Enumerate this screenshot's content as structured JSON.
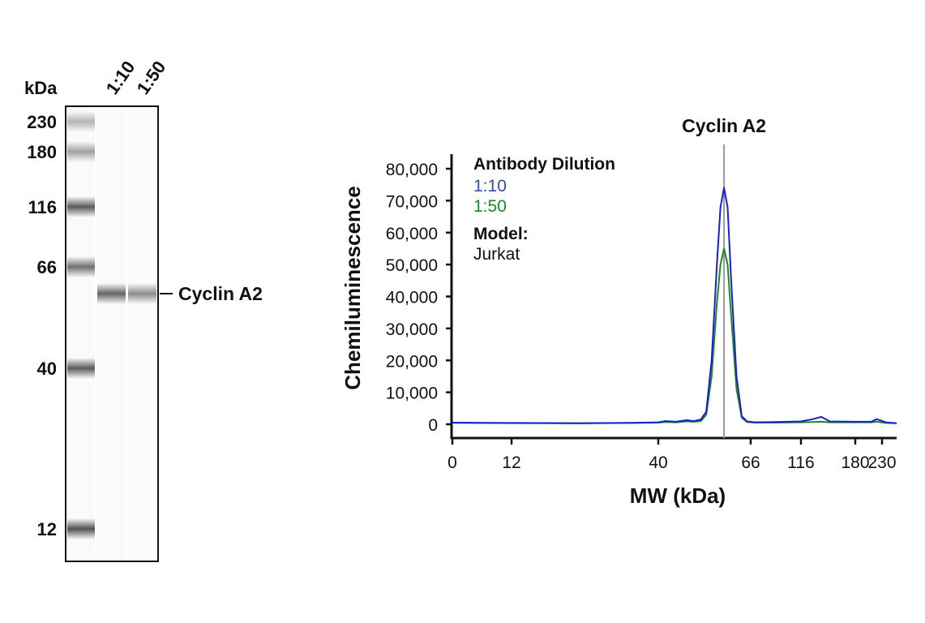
{
  "chart_data": [
    {
      "type": "blot",
      "unit_label": "kDa",
      "lane_labels": [
        "1:10",
        "1:50"
      ],
      "ladder": [
        230,
        180,
        116,
        66,
        40,
        12
      ],
      "band_label": "Cyclin A2",
      "band_intensity": [
        0.75,
        0.55
      ]
    },
    {
      "type": "line",
      "title": "Cyclin A2",
      "xlabel": "MW (kDa)",
      "ylabel": "Chemiluminescence",
      "x_ticks": [
        0,
        12,
        40,
        66,
        116,
        180,
        230
      ],
      "y_ticks": [
        0,
        10000,
        20000,
        30000,
        40000,
        50000,
        60000,
        70000,
        80000
      ],
      "y_tick_labels": [
        "0",
        "10,000",
        "20,000",
        "30,000",
        "40,000",
        "50,000",
        "60,000",
        "70,000",
        "80,000"
      ],
      "ylim": [
        0,
        80000
      ],
      "marker_line_kda": 58.5,
      "legend": {
        "title": "Antibody Dilution",
        "entries": [
          "1:10",
          "1:50"
        ],
        "model_label": "Model:",
        "model_value": "Jurkat",
        "placement": "top-left"
      },
      "colors": {
        "1:10": "#1a1fd0",
        "1:50": "#1a8a2a",
        "legend_1:10": "#3a4aa8",
        "marker": "#999999"
      },
      "series": [
        {
          "name": "1:10",
          "x": [
            0,
            6,
            12,
            25,
            35,
            40,
            42,
            45,
            48,
            50,
            52,
            53.5,
            55,
            56.5,
            57.5,
            58.5,
            59.5,
            60.5,
            62,
            63.5,
            65,
            70,
            90,
            116,
            130,
            140,
            150,
            180,
            210,
            220,
            235,
            250
          ],
          "y": [
            500,
            450,
            400,
            300,
            450,
            600,
            1000,
            800,
            1300,
            1000,
            1500,
            4000,
            20000,
            50000,
            68000,
            74000,
            68000,
            45000,
            15000,
            2500,
            900,
            600,
            700,
            900,
            1600,
            2300,
            900,
            800,
            800,
            1600,
            600,
            300
          ]
        },
        {
          "name": "1:50",
          "x": [
            0,
            6,
            12,
            25,
            35,
            40,
            42,
            45,
            48,
            50,
            52,
            53.5,
            55,
            56.5,
            57.5,
            58.5,
            59.5,
            60.5,
            62,
            63.5,
            65,
            70,
            90,
            116,
            130,
            140,
            150,
            180,
            210,
            220,
            235,
            250
          ],
          "y": [
            450,
            400,
            350,
            300,
            400,
            500,
            700,
            600,
            900,
            800,
            1000,
            3000,
            15000,
            38000,
            50000,
            55000,
            50000,
            34000,
            11000,
            2000,
            700,
            500,
            500,
            600,
            700,
            800,
            600,
            600,
            600,
            800,
            400,
            300
          ]
        }
      ]
    }
  ]
}
